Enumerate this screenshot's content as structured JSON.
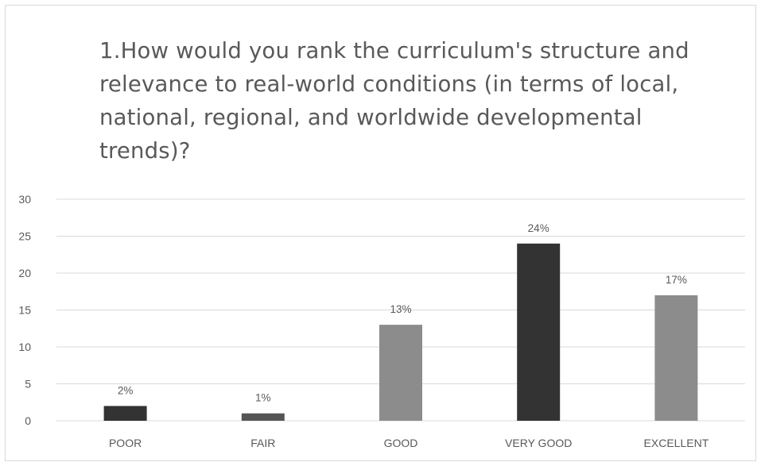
{
  "chart_data": {
    "type": "bar",
    "title": "1.How would you rank the curriculum's structure and relevance to real-world conditions (in terms of local, national, regional, and worldwide developmental trends)?",
    "categories": [
      "POOR",
      "FAIR",
      "GOOD",
      "VERY GOOD",
      "EXCELLENT"
    ],
    "values": [
      2,
      1,
      13,
      24,
      17
    ],
    "data_labels": [
      "2%",
      "1%",
      "13%",
      "24%",
      "17%"
    ],
    "bar_colors": [
      "#333333",
      "#555555",
      "#8c8c8c",
      "#333333",
      "#8c8c8c"
    ],
    "ylim": [
      0,
      30
    ],
    "yticks": [
      0,
      5,
      10,
      15,
      20,
      25,
      30
    ],
    "xlabel": "",
    "ylabel": "",
    "grid": true,
    "legend": "none"
  },
  "colors": {
    "gridline": "#d9d9d9",
    "tick_label": "#595959",
    "title": "#595959"
  }
}
